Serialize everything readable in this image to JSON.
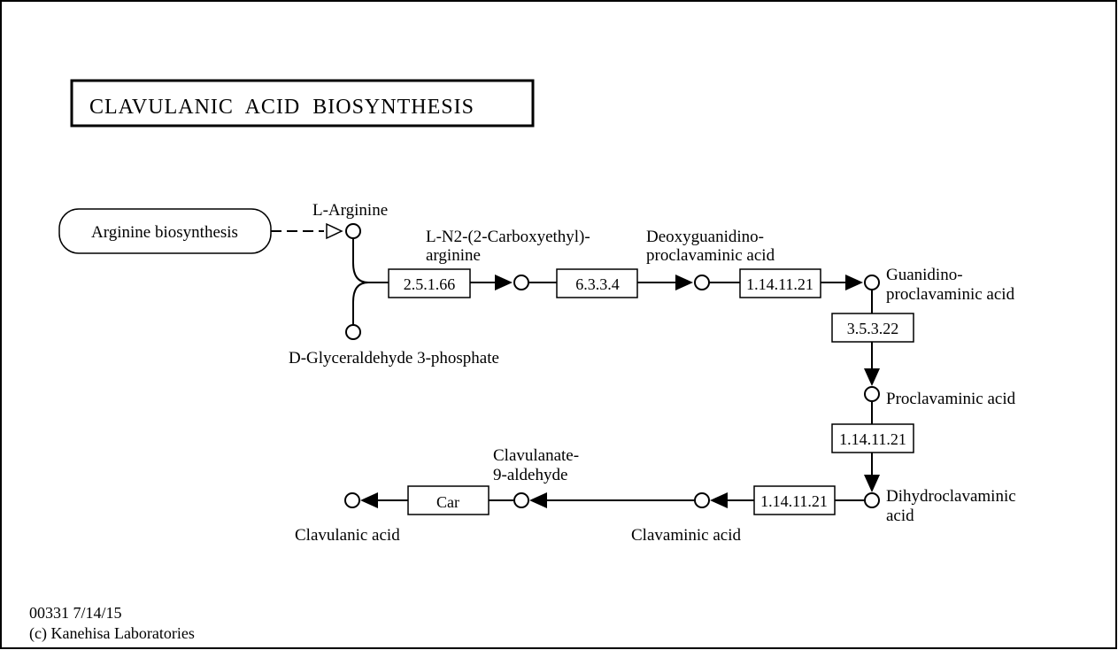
{
  "title": "CLAVULANIC  ACID  BIOSYNTHESIS",
  "map_links": {
    "arginine_biosynthesis": "Arginine biosynthesis"
  },
  "compounds": {
    "l_arginine": "L-Arginine",
    "d_glyceraldehyde_3p": "D-Glyceraldehyde 3-phosphate",
    "carboxyethyl_arginine_1": "L-N2-(2-Carboxyethyl)-",
    "carboxyethyl_arginine_2": "arginine",
    "deoxyguanidino_1": "Deoxyguanidino-",
    "deoxyguanidino_2": "proclavaminic acid",
    "guanidino_1": "Guanidino-",
    "guanidino_2": "proclavaminic acid",
    "proclavaminic": "Proclavaminic acid",
    "dihydroclavaminic_1": "Dihydroclavaminic",
    "dihydroclavaminic_2": "acid",
    "clavaminic": "Clavaminic acid",
    "clavulanate_aldehyde_1": "Clavulanate-",
    "clavulanate_aldehyde_2": "9-aldehyde",
    "clavulanic": "Clavulanic acid"
  },
  "enzymes": {
    "e1": "2.5.1.66",
    "e2": "6.3.3.4",
    "e3": "1.14.11.21",
    "e4": "3.5.3.22",
    "e5": "1.14.11.21",
    "e6": "1.14.11.21",
    "e7": "Car"
  },
  "footer": {
    "map_id_date": "00331 7/14/15",
    "copyright": "(c) Kanehisa Laboratories"
  }
}
